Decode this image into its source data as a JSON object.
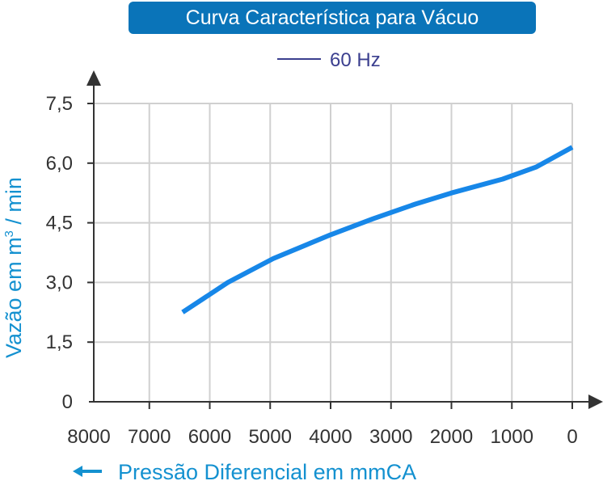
{
  "chart_data": {
    "type": "line",
    "title": "Curva Característica para Vácuo",
    "xlabel": "Pressão Diferencial em mmCA",
    "ylabel_main": "Vazão em m",
    "ylabel_sup": "3",
    "ylabel_tail": " / min",
    "x_ticks": [
      "8000",
      "7000",
      "6000",
      "5000",
      "4000",
      "3000",
      "2000",
      "1000",
      "0"
    ],
    "y_ticks": [
      "0",
      "1,5",
      "3,0",
      "4,5",
      "6,0",
      "7,5"
    ],
    "xlim": [
      8000,
      0
    ],
    "ylim": [
      0,
      7.5
    ],
    "grid": true,
    "legend_position": "top-center",
    "series": [
      {
        "name": "60 Hz",
        "color": "#1787e8",
        "x": [
          6450,
          5700,
          4950,
          4000,
          3300,
          2600,
          2000,
          1150,
          600,
          0
        ],
        "y": [
          2.25,
          3.0,
          3.6,
          4.2,
          4.6,
          4.97,
          5.25,
          5.6,
          5.9,
          6.4
        ]
      }
    ],
    "legend_line_color": "#3b3f8f",
    "accent_color": "#0a74b9"
  }
}
